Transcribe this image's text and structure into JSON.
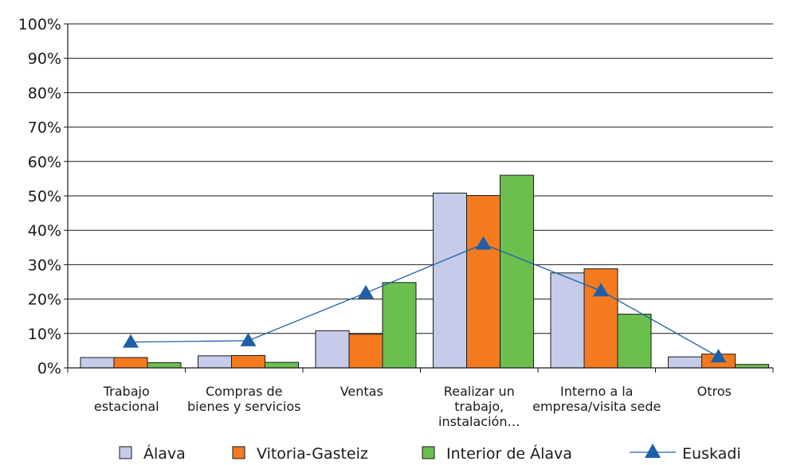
{
  "chart_data": {
    "type": "bar",
    "title": "",
    "xlabel": "",
    "ylabel": "",
    "ylim": [
      0,
      100
    ],
    "y_ticks": [
      "0%",
      "10%",
      "20%",
      "30%",
      "40%",
      "50%",
      "60%",
      "70%",
      "80%",
      "90%",
      "100%"
    ],
    "grid": true,
    "legend_position": "bottom",
    "categories": [
      [
        "Trabajo",
        "estacional"
      ],
      [
        "Compras de",
        "bienes y servicios"
      ],
      [
        "Ventas"
      ],
      [
        "Realizar un",
        "trabajo,",
        "instalación…"
      ],
      [
        "Interno a la",
        "empresa/visita sede"
      ],
      [
        "Otros"
      ]
    ],
    "series": [
      {
        "name": "Álava",
        "kind": "bar",
        "color": "#c5cbe9",
        "values": [
          3.0,
          3.5,
          10.8,
          50.8,
          27.6,
          3.2
        ]
      },
      {
        "name": "Vitoria-Gasteiz",
        "kind": "bar",
        "color": "#f47a20",
        "values": [
          3.0,
          3.6,
          9.8,
          50.1,
          28.8,
          4.0
        ]
      },
      {
        "name": "Interior de Álava",
        "kind": "bar",
        "color": "#6cbf4f",
        "values": [
          1.5,
          1.6,
          24.8,
          56.0,
          15.6,
          1.0
        ]
      },
      {
        "name": "Euskadi",
        "kind": "line",
        "color": "#1f5fa8",
        "marker": "triangle",
        "values": [
          7.5,
          7.9,
          21.8,
          36.0,
          22.4,
          3.2
        ]
      }
    ]
  }
}
